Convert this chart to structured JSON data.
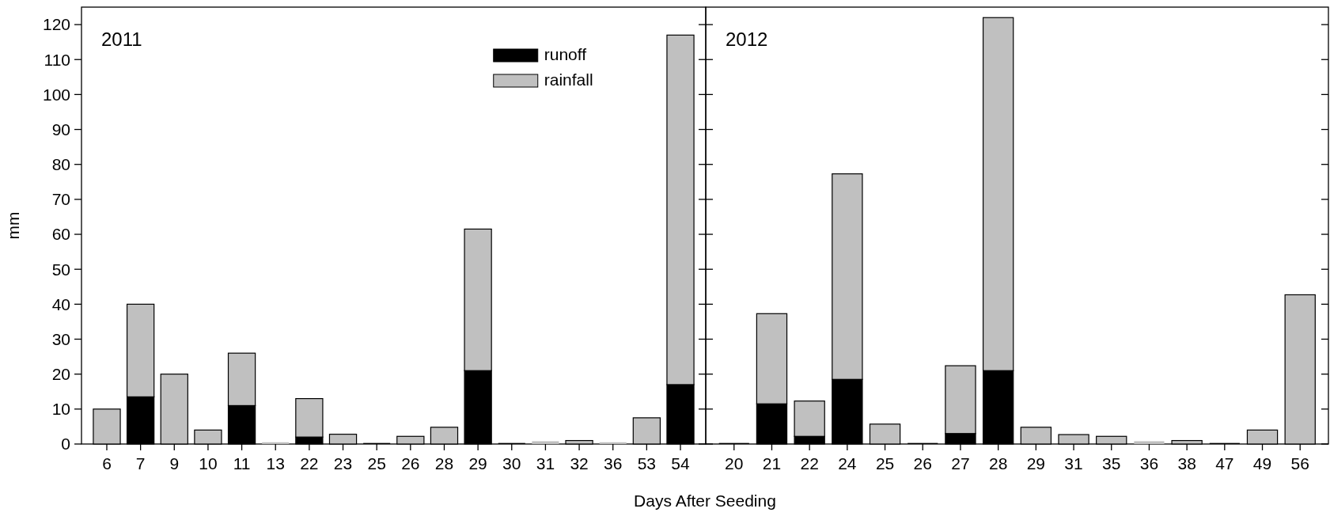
{
  "chart_data": [
    {
      "type": "bar",
      "stacked": true,
      "ylabel": "mm",
      "xlabel": "Days After Seeding",
      "annotations": [
        "2011"
      ],
      "legend": "top right",
      "categories": [
        "6",
        "7",
        "9",
        "10",
        "11",
        "13",
        "22",
        "23",
        "25",
        "26",
        "28",
        "29",
        "30",
        "31",
        "32",
        "36",
        "53",
        "54"
      ],
      "series": [
        {
          "name": "runoff",
          "color": "#000000",
          "values": [
            0,
            13.5,
            0,
            0,
            11,
            0,
            2,
            0,
            0.3,
            0,
            0,
            21,
            0.3,
            0,
            0,
            0,
            0,
            17
          ]
        },
        {
          "name": "rainfall",
          "color": "#c0c0c0",
          "values": [
            10,
            26.5,
            20,
            4,
            15,
            0.5,
            11,
            2.8,
            0,
            2.2,
            4.8,
            40.5,
            0,
            0.8,
            1,
            0.5,
            7.5,
            100
          ]
        }
      ],
      "ylim": [
        0,
        125
      ],
      "yticks": [
        0,
        10,
        20,
        30,
        40,
        50,
        60,
        70,
        80,
        90,
        100,
        110,
        120
      ]
    },
    {
      "type": "bar",
      "stacked": true,
      "annotations": [
        "2012"
      ],
      "tick_labels": "x",
      "categories": [
        "20",
        "21",
        "22",
        "24",
        "25",
        "26",
        "27",
        "28",
        "29",
        "31",
        "35",
        "36",
        "38",
        "47",
        "49",
        "56"
      ],
      "series": [
        {
          "color": "#000000",
          "values": [
            0.3,
            11.5,
            2.2,
            18.5,
            0,
            0.3,
            3,
            21,
            0,
            0,
            0,
            0,
            0,
            0.3,
            0,
            0
          ]
        },
        {
          "color": "#c0c0c0",
          "values": [
            0,
            25.8,
            10.1,
            58.8,
            5.7,
            0,
            19.4,
            101,
            4.8,
            2.7,
            2.2,
            0.8,
            1,
            0,
            4,
            42.7
          ]
        }
      ],
      "ylim": [
        0,
        125
      ],
      "yticks": [
        0,
        10,
        20,
        30,
        40,
        50,
        60,
        70,
        80,
        90,
        100,
        110,
        120
      ]
    }
  ]
}
